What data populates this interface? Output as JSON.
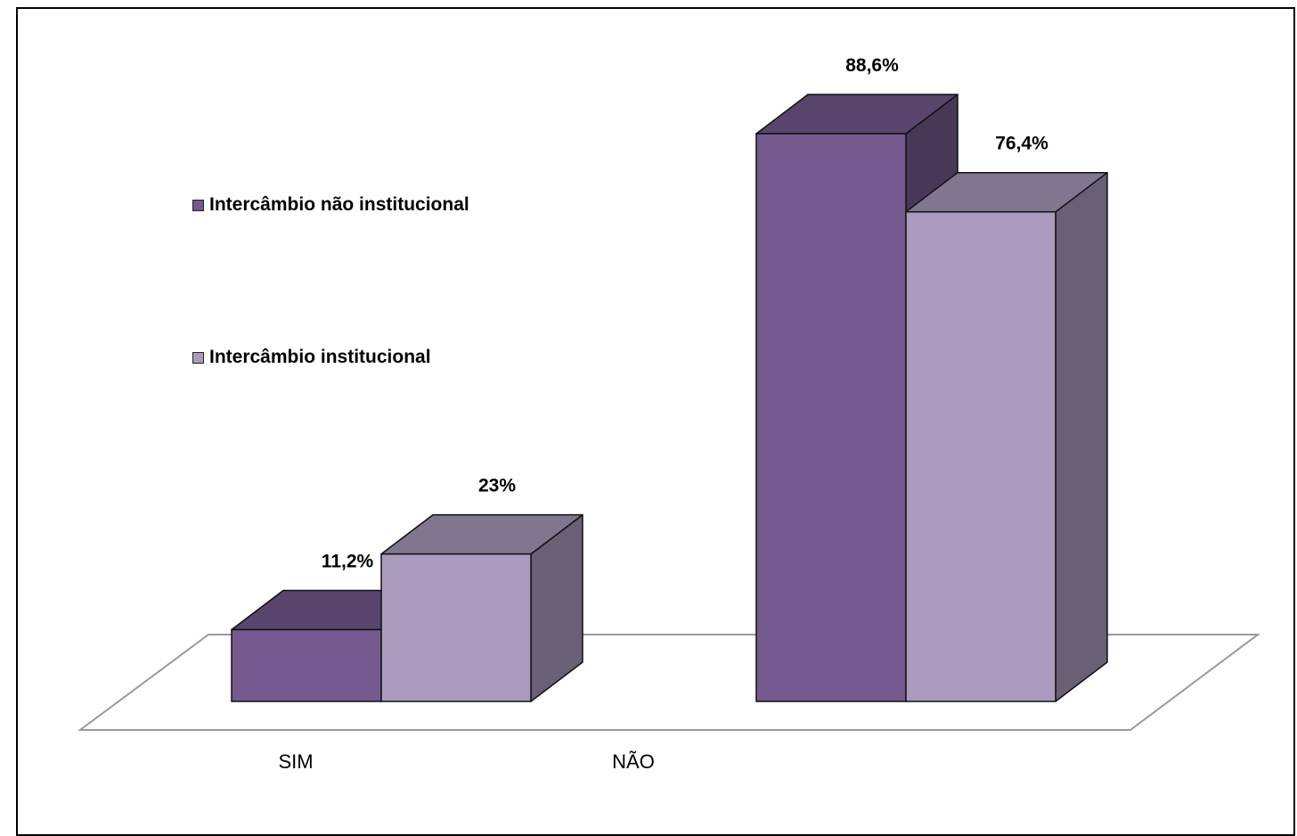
{
  "chart_data": {
    "type": "bar",
    "three_d": true,
    "categories": [
      "SIM",
      "NÃO"
    ],
    "series": [
      {
        "name": "Intercâmbio não institucional",
        "values": [
          11.2,
          88.6
        ],
        "labels": [
          "11,2%",
          "88,6%"
        ],
        "color": "#745a8e"
      },
      {
        "name": "Intercâmbio institucional",
        "values": [
          23,
          76.4
        ],
        "labels": [
          "23%",
          "76,4%"
        ],
        "color": "#aa9bbe"
      }
    ],
    "legend": {
      "placement": "left"
    },
    "grid": false
  }
}
